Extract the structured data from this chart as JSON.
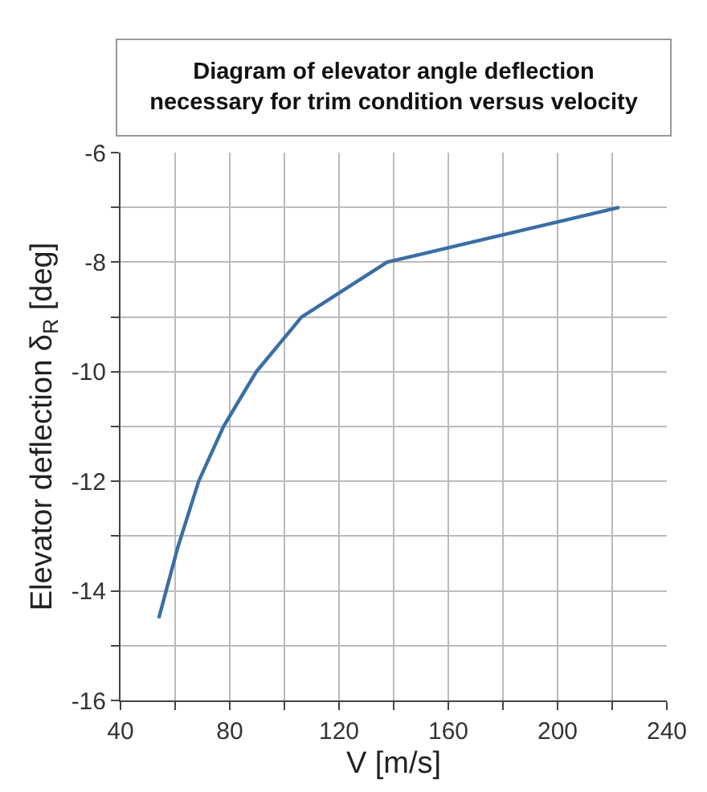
{
  "chart_data": {
    "type": "line",
    "title": "Diagram of elevator angle deflection\nnecessary for trim condition versus velocity",
    "xlabel": "V [m/s]",
    "ylabel": "Elevator deflection δ$_{R}$ [deg]",
    "x": [
      54,
      61,
      68.6,
      77.7,
      89.7,
      106.3,
      137.6,
      222.6
    ],
    "series": [
      {
        "color": "#3a6ea5",
        "values": [
          -14.5,
          -13.2,
          -12,
          -11,
          -10,
          -9,
          -8,
          -7
        ]
      }
    ],
    "xlim": [
      40,
      240
    ],
    "ylim": [
      -16,
      -6
    ],
    "xticks": [
      40,
      {
        "value": 60,
        "label": null
      },
      80,
      {
        "value": 100,
        "label": null
      },
      120,
      {
        "value": 140,
        "label": null
      },
      160,
      {
        "value": 180,
        "label": null
      },
      200,
      {
        "value": 220,
        "label": null
      },
      240
    ],
    "yticks": [
      -16,
      {
        "value": -15,
        "label": null
      },
      -14,
      {
        "value": -13,
        "label": null
      },
      -12,
      {
        "value": -11,
        "label": null
      },
      -10,
      {
        "value": -9,
        "label": null
      },
      -8,
      {
        "value": -7,
        "label": null
      },
      -6
    ],
    "grid": true,
    "legend": false,
    "marker": "none",
    "line_style": "solid"
  }
}
